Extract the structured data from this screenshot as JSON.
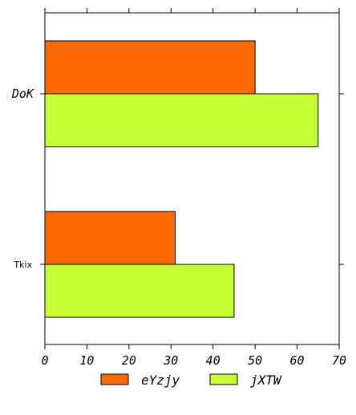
{
  "chart_data": {
    "type": "bar",
    "orientation": "horizontal",
    "categories": [
      "DoK",
      "Tkix"
    ],
    "series": [
      {
        "name": "eYzjy",
        "color": "#ff6a00",
        "values": [
          50,
          31
        ]
      },
      {
        "name": "jXTW",
        "color": "#c6ff33",
        "values": [
          65,
          45
        ]
      }
    ],
    "xlim": [
      0,
      70
    ],
    "xticks": [
      0,
      10,
      20,
      30,
      40,
      50,
      60,
      70
    ],
    "grid": false,
    "legend": {
      "position": "bottom-center"
    }
  }
}
